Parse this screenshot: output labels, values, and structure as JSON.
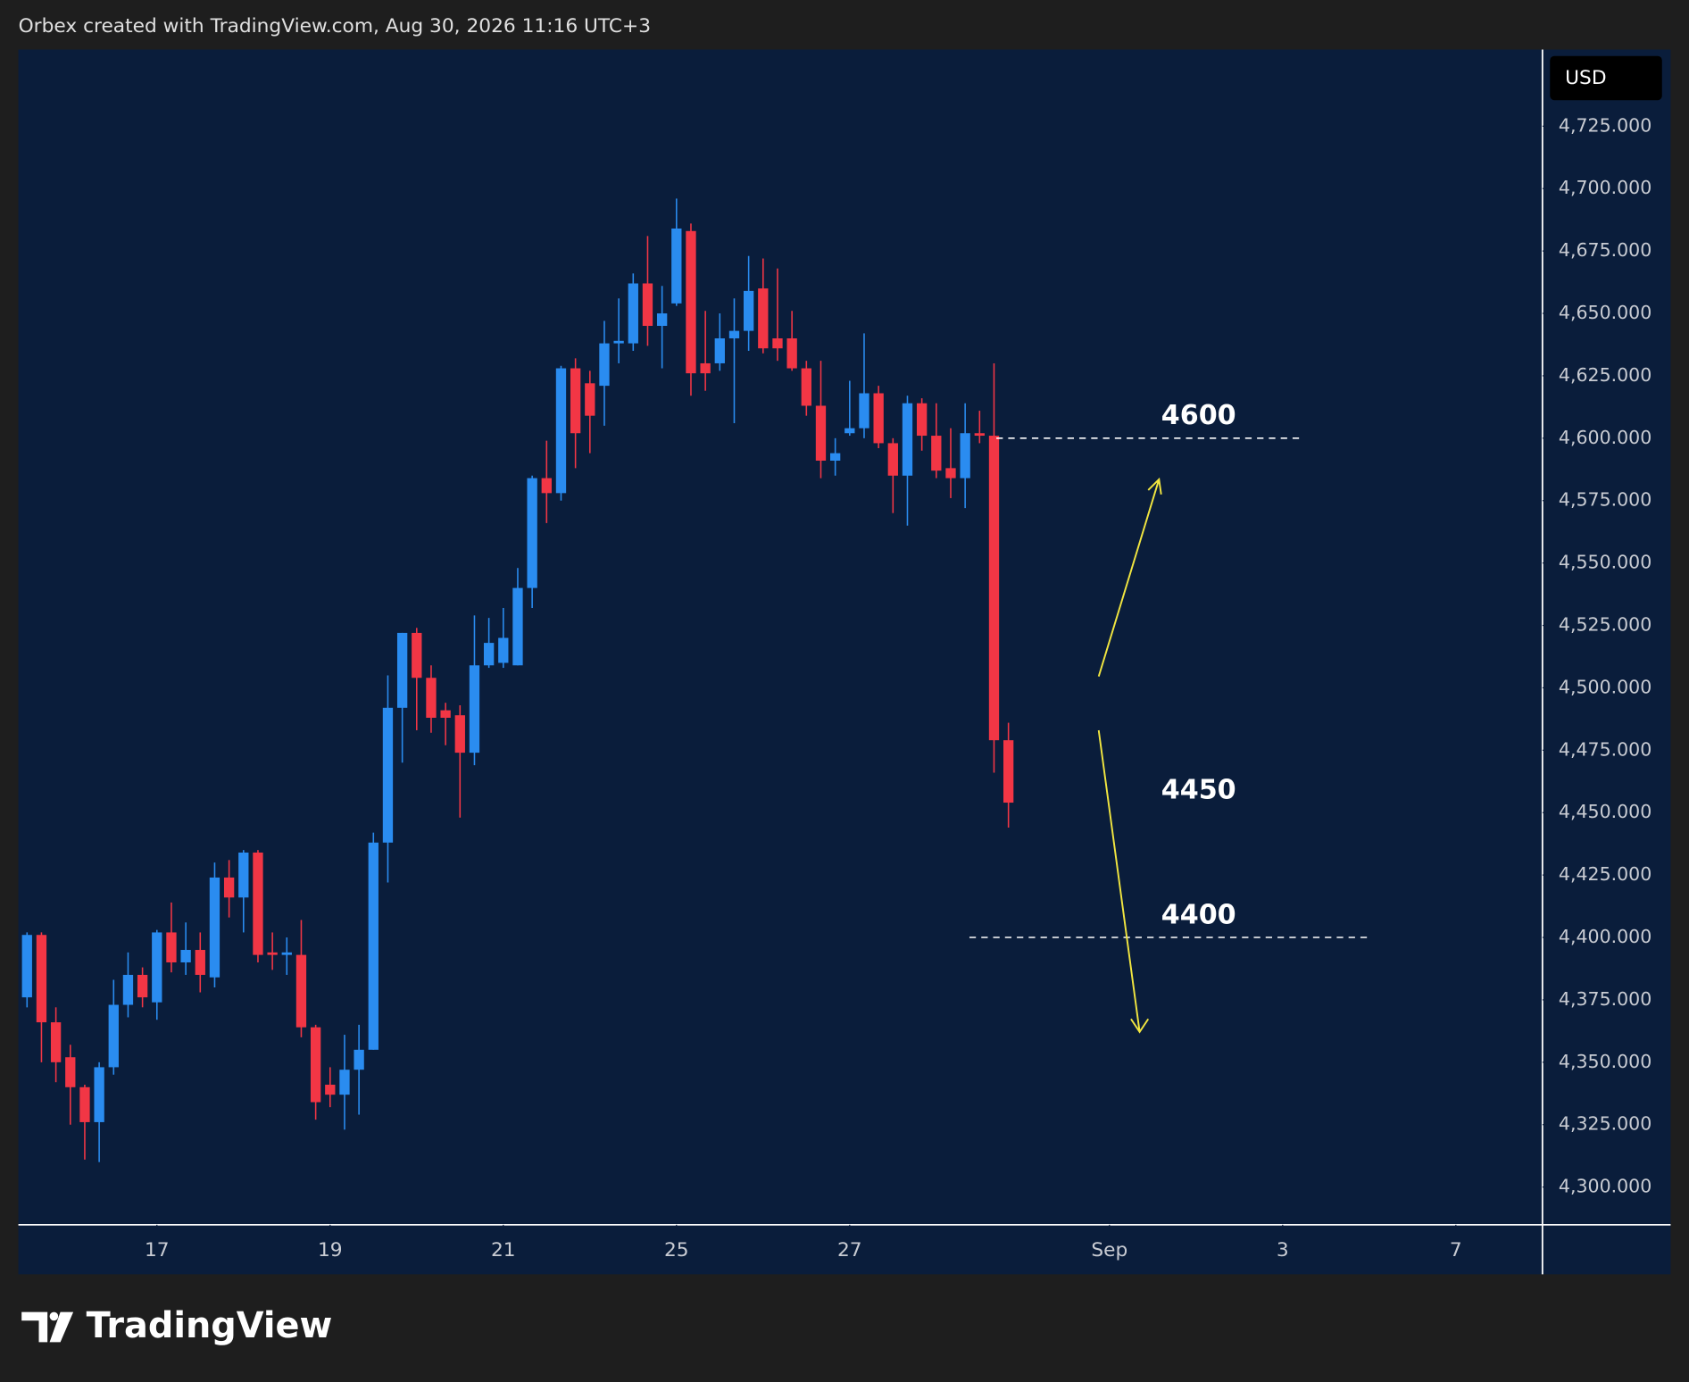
{
  "chart_data": {
    "type": "candlestick",
    "header": "Orbex created with TradingView.com, Aug 30, 2026 11:16 UTC+3",
    "currency": "USD",
    "brand": "TradingView",
    "up_color": "#2a8cf0",
    "down_color": "#f23645",
    "open": [
      4376,
      4401,
      4366,
      4352,
      4340,
      4326,
      4348,
      4373,
      4385,
      4374,
      4402,
      4390,
      4395,
      4384,
      4424,
      4416,
      4434,
      4394,
      4393,
      4393,
      4364,
      4341,
      4337,
      4347,
      4355,
      4438,
      4492,
      4522,
      4504,
      4491,
      4489,
      4474,
      4509,
      4510,
      4509,
      4540,
      4584,
      4578,
      4628,
      4622,
      4621,
      4638,
      4638,
      4662,
      4645,
      4654,
      4683,
      4630,
      4630,
      4640,
      4643,
      4660,
      4640,
      4640,
      4628,
      4613,
      4591,
      4602,
      4604,
      4618,
      4598,
      4585,
      4614,
      4601,
      4588,
      4584,
      4602,
      4601,
      4479
    ],
    "high": [
      4402,
      4402,
      4372,
      4357,
      4341,
      4350,
      4383,
      4394,
      4388,
      4403,
      4414,
      4406,
      4402,
      4430,
      4431,
      4435,
      4435,
      4402,
      4400,
      4407,
      4365,
      4348,
      4361,
      4365,
      4442,
      4505,
      4522,
      4524,
      4509,
      4494,
      4493,
      4529,
      4528,
      4532,
      4548,
      4585,
      4599,
      4629,
      4632,
      4627,
      4647,
      4656,
      4666,
      4681,
      4661,
      4696,
      4686,
      4651,
      4650,
      4656,
      4673,
      4672,
      4668,
      4651,
      4631,
      4631,
      4600,
      4623,
      4642,
      4621,
      4600,
      4617,
      4616,
      4614,
      4604,
      4614,
      4611,
      4630,
      4486
    ],
    "low": [
      4372,
      4350,
      4342,
      4325,
      4311,
      4310,
      4345,
      4368,
      4372,
      4367,
      4386,
      4385,
      4378,
      4380,
      4408,
      4402,
      4390,
      4387,
      4385,
      4360,
      4327,
      4332,
      4323,
      4329,
      4355,
      4422,
      4470,
      4483,
      4482,
      4477,
      4448,
      4469,
      4508,
      4508,
      4509,
      4532,
      4566,
      4575,
      4588,
      4594,
      4605,
      4630,
      4635,
      4637,
      4628,
      4653,
      4617,
      4619,
      4627,
      4606,
      4635,
      4634,
      4631,
      4627,
      4609,
      4584,
      4585,
      4601,
      4600,
      4596,
      4570,
      4565,
      4595,
      4584,
      4576,
      4572,
      4598,
      4466,
      4444
    ],
    "close": [
      4401,
      4366,
      4350,
      4340,
      4326,
      4348,
      4373,
      4385,
      4376,
      4402,
      4390,
      4395,
      4385,
      4424,
      4416,
      4434,
      4393,
      4393,
      4394,
      4364,
      4334,
      4337,
      4347,
      4355,
      4438,
      4492,
      4522,
      4504,
      4488,
      4488,
      4474,
      4509,
      4518,
      4520,
      4540,
      4584,
      4578,
      4628,
      4602,
      4609,
      4638,
      4639,
      4662,
      4645,
      4650,
      4684,
      4626,
      4626,
      4640,
      4643,
      4659,
      4636,
      4636,
      4628,
      4613,
      4591,
      4594,
      4604,
      4618,
      4598,
      4585,
      4614,
      4601,
      4587,
      4584,
      4602,
      4601,
      4479,
      4454
    ],
    "xlim": [
      -0.6,
      105
    ],
    "xticks": [
      {
        "value": 9,
        "label": "17"
      },
      {
        "value": 21,
        "label": "19"
      },
      {
        "value": 33,
        "label": "21"
      },
      {
        "value": 45,
        "label": "25"
      },
      {
        "value": 57,
        "label": "27"
      },
      {
        "value": 75,
        "label": "Sep"
      },
      {
        "value": 87,
        "label": "3"
      },
      {
        "value": 99,
        "label": "7"
      }
    ],
    "ylim": [
      4284.9,
      4755.7
    ],
    "yticks": [
      {
        "value": 4300,
        "label": "4,300.000"
      },
      {
        "value": 4325,
        "label": "4,325.000"
      },
      {
        "value": 4350,
        "label": "4,350.000"
      },
      {
        "value": 4375,
        "label": "4,375.000"
      },
      {
        "value": 4400,
        "label": "4,400.000"
      },
      {
        "value": 4425,
        "label": "4,425.000"
      },
      {
        "value": 4450,
        "label": "4,450.000"
      },
      {
        "value": 4475,
        "label": "4,475.000"
      },
      {
        "value": 4500,
        "label": "4,500.000"
      },
      {
        "value": 4525,
        "label": "4,525.000"
      },
      {
        "value": 4550,
        "label": "4,550.000"
      },
      {
        "value": 4575,
        "label": "4,575.000"
      },
      {
        "value": 4600,
        "label": "4,600.000"
      },
      {
        "value": 4625,
        "label": "4,625.000"
      },
      {
        "value": 4650,
        "label": "4,650.000"
      },
      {
        "value": 4675,
        "label": "4,675.000"
      },
      {
        "value": 4700,
        "label": "4,700.000"
      },
      {
        "value": 4725,
        "label": "4,725.000"
      }
    ],
    "levels": [
      4600,
      4450,
      4400
    ],
    "level_lines": [
      4600,
      4400
    ]
  }
}
